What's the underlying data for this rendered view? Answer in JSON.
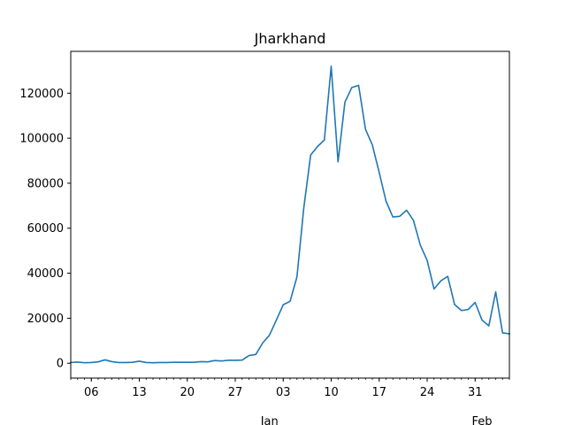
{
  "chart_data": {
    "type": "line",
    "title": "Jharkhand",
    "xlabel": "",
    "ylabel": "",
    "x_start": "2021-12-03",
    "x_tick_labels": [
      "06",
      "13",
      "20",
      "27",
      "03",
      "10",
      "17",
      "24",
      "31"
    ],
    "x_tick_dates": [
      "2021-12-06",
      "2021-12-13",
      "2021-12-20",
      "2021-12-27",
      "2022-01-03",
      "2022-01-10",
      "2022-01-17",
      "2022-01-24",
      "2022-01-31"
    ],
    "x_month_labels": [
      {
        "label": "Jan",
        "date": "2022-01-01"
      },
      {
        "label": "Feb",
        "date": "2022-02-01"
      }
    ],
    "y_tick_labels": [
      "0",
      "20000",
      "40000",
      "60000",
      "80000",
      "100000",
      "120000"
    ],
    "y_ticks": [
      0,
      20000,
      40000,
      60000,
      80000,
      100000,
      120000
    ],
    "ylim": [
      -6600,
      138600
    ],
    "color": "#1f77b4",
    "series": [
      {
        "values": [
          300,
          500,
          200,
          300,
          600,
          1500,
          700,
          300,
          300,
          400,
          900,
          300,
          200,
          300,
          300,
          400,
          400,
          400,
          400,
          700,
          600,
          1200,
          1000,
          1300,
          1300,
          1400,
          3400,
          3900,
          9000,
          12500,
          19200,
          26000,
          27500,
          38300,
          69000,
          92500,
          96300,
          99200,
          132000,
          89500,
          116000,
          122500,
          123500,
          104000,
          97000,
          84800,
          72000,
          65000,
          65300,
          68000,
          63500,
          52500,
          45700,
          33000,
          36600,
          38600,
          26100,
          23400,
          23900,
          27000,
          19200,
          16600,
          31700,
          13500,
          13100
        ]
      }
    ]
  }
}
